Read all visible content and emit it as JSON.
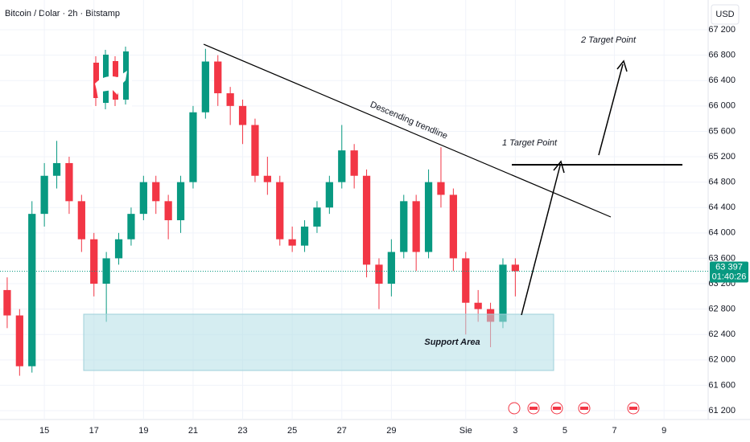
{
  "chart_data": {
    "type": "candlestick",
    "title": "Bitcoin / Dolar · 2h · Bitstamp",
    "currency": "USD",
    "up_color": "#089981",
    "down_color": "#f23645",
    "x": [
      13.5,
      14,
      14.5,
      15,
      15.5,
      16,
      16.5,
      17,
      17.5,
      18,
      18.5,
      19,
      19.5,
      20,
      20.5,
      21,
      21.5,
      22,
      22.5,
      23,
      23.5,
      24,
      24.5,
      25,
      25.5,
      26,
      26.5,
      27,
      27.5,
      28,
      28.5,
      29,
      29.5,
      30,
      30.5,
      31,
      31.5,
      32,
      32.5,
      33,
      33.5,
      34
    ],
    "open": [
      63100,
      62700,
      61900,
      64300,
      64900,
      65100,
      64500,
      63900,
      63200,
      63600,
      63900,
      64300,
      64800,
      64500,
      64200,
      64800,
      65900,
      66700,
      66200,
      66000,
      65700,
      64900,
      64800,
      63900,
      63800,
      64100,
      64400,
      64800,
      65300,
      64900,
      63500,
      63200,
      63700,
      64500,
      63700,
      64800,
      64600,
      63600,
      62900,
      62800,
      62600,
      63500
    ],
    "high": [
      63300,
      62800,
      64500,
      65100,
      65450,
      65200,
      64600,
      64000,
      63700,
      64000,
      64400,
      64900,
      64900,
      64600,
      64900,
      66000,
      66900,
      66800,
      66300,
      66100,
      65800,
      65200,
      64900,
      64100,
      64200,
      64500,
      64900,
      65700,
      65400,
      65000,
      63600,
      63900,
      64600,
      64600,
      65000,
      65350,
      64700,
      63700,
      63100,
      62900,
      63600,
      63600
    ],
    "low": [
      62500,
      61750,
      61800,
      64100,
      64700,
      64300,
      63700,
      63000,
      62600,
      63500,
      63800,
      64200,
      64300,
      63900,
      64000,
      64700,
      65800,
      66000,
      65700,
      65400,
      64800,
      64600,
      63800,
      63700,
      63700,
      64000,
      64300,
      64700,
      64700,
      63300,
      62800,
      63000,
      63600,
      63400,
      63600,
      64400,
      63400,
      62400,
      62600,
      62200,
      62500,
      63000
    ],
    "close": [
      62700,
      61900,
      64300,
      64900,
      65100,
      64500,
      63900,
      63200,
      63600,
      63900,
      64300,
      64800,
      64500,
      64200,
      64800,
      65900,
      66700,
      66200,
      66000,
      65700,
      64900,
      64800,
      63900,
      63800,
      64100,
      64400,
      64800,
      65300,
      64900,
      63500,
      63200,
      63700,
      64500,
      63700,
      64800,
      64600,
      63600,
      62900,
      62800,
      62600,
      63500,
      63397
    ],
    "last_price": {
      "value": 63397,
      "label": "63 397"
    },
    "countdown": "01:40:26",
    "xlim": [
      13.21,
      41.78
    ],
    "xticks": [
      15,
      17,
      19,
      21,
      23,
      25,
      27,
      29,
      {
        "value": 32,
        "label": "Sie"
      },
      {
        "value": 34,
        "label": "3"
      },
      {
        "value": 36,
        "label": "5"
      },
      {
        "value": 38,
        "label": "7"
      },
      {
        "value": 40,
        "label": "9"
      }
    ],
    "ylim": [
      61061,
      67669
    ],
    "yticks": [
      {
        "value": 61200,
        "label": "61 200"
      },
      {
        "value": 61600,
        "label": "61 600"
      },
      {
        "value": 62000,
        "label": "62 000"
      },
      {
        "value": 62400,
        "label": "62 400"
      },
      {
        "value": 62800,
        "label": "62 800"
      },
      {
        "value": 63200,
        "label": "63 200"
      },
      {
        "value": 63600,
        "label": "63 600"
      },
      {
        "value": 64000,
        "label": "64 000"
      },
      {
        "value": 64400,
        "label": "64 400"
      },
      {
        "value": 64800,
        "label": "64 800"
      },
      {
        "value": 65200,
        "label": "65 200"
      },
      {
        "value": 65600,
        "label": "65 600"
      },
      {
        "value": 66000,
        "label": "66 000"
      },
      {
        "value": 66400,
        "label": "66 400"
      },
      {
        "value": 66800,
        "label": "66 800"
      },
      {
        "value": 67200,
        "label": "67 200"
      }
    ],
    "annotations": {
      "trendline": "Descending trendline",
      "target1": "1 Target Point",
      "target2": "2 Target Point",
      "support": "Support Area"
    }
  }
}
